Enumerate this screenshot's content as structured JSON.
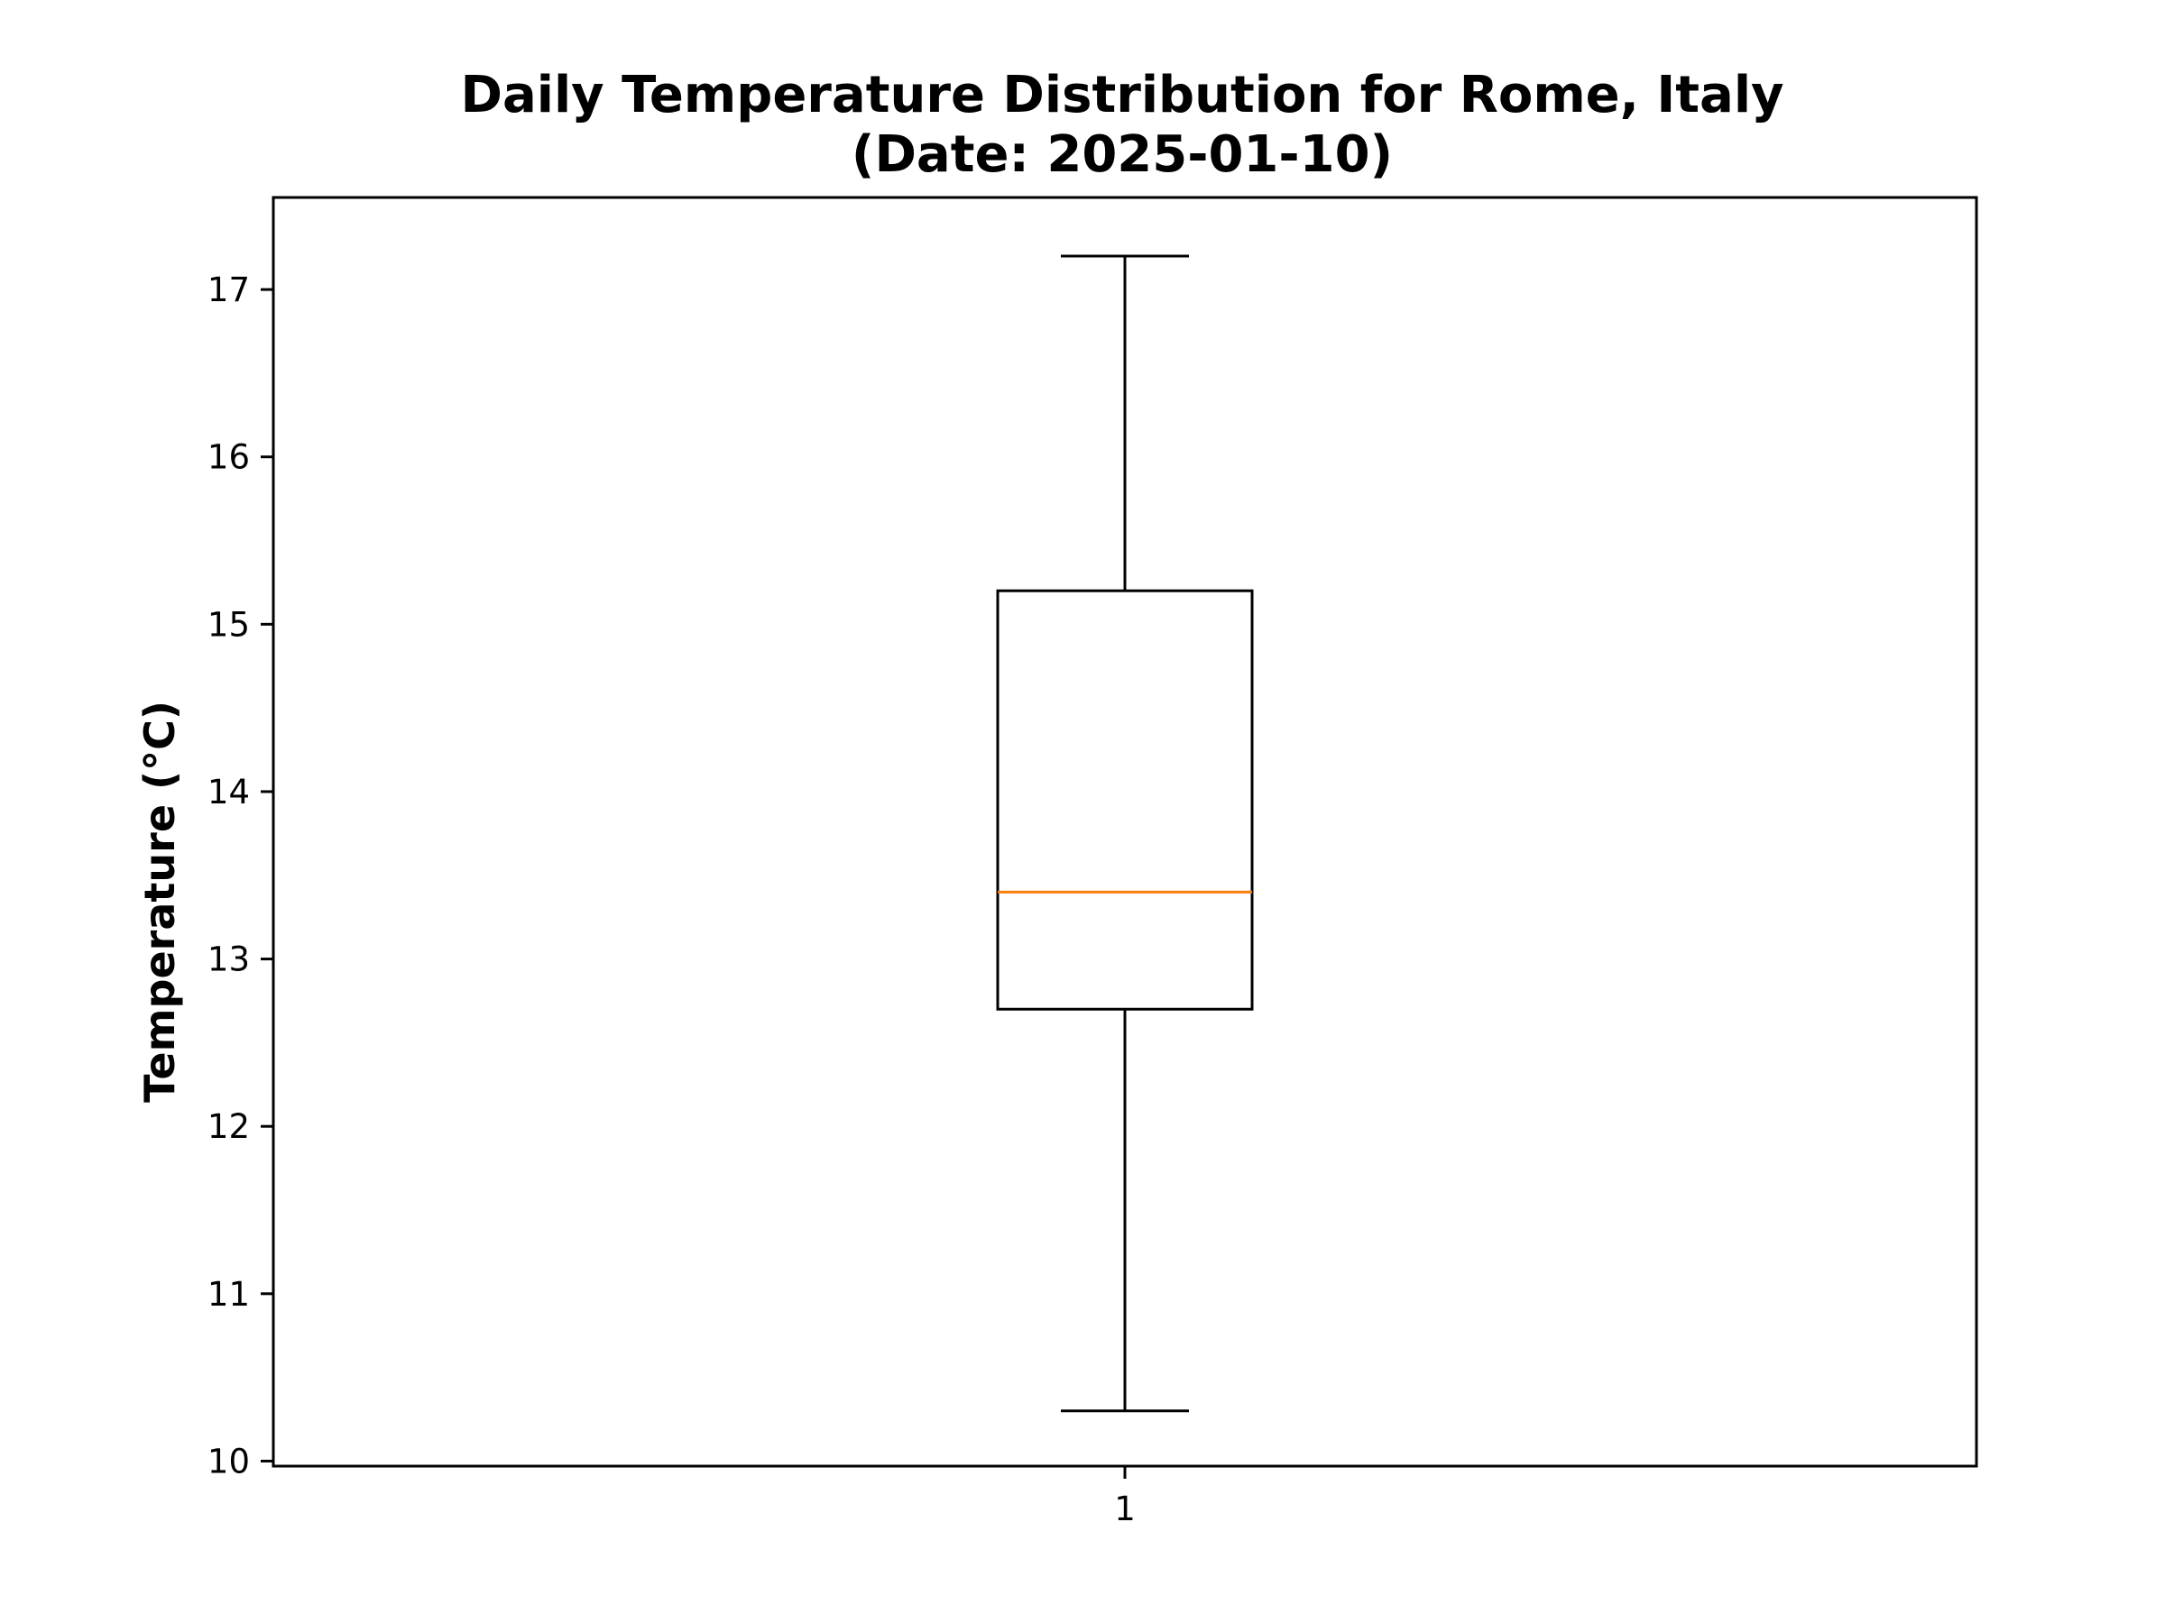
{
  "chart_data": {
    "type": "box",
    "title_line1": "Daily Temperature Distribution for Rome, Italy",
    "title_line2": "(Date: 2025-01-10)",
    "xlabel": "",
    "ylabel": "Temperature (°C)",
    "categories": [
      "1"
    ],
    "boxes": [
      {
        "category": "1",
        "whisker_low": 10.3,
        "q1": 12.7,
        "median": 13.4,
        "q3": 15.2,
        "whisker_high": 17.2
      }
    ],
    "ylim": [
      9.97,
      17.55
    ],
    "yticks": [
      10,
      11,
      12,
      13,
      14,
      15,
      16,
      17
    ],
    "grid": false,
    "colors": {
      "box": "#000000",
      "median": "#ff7f0e",
      "axes": "#000000"
    }
  }
}
